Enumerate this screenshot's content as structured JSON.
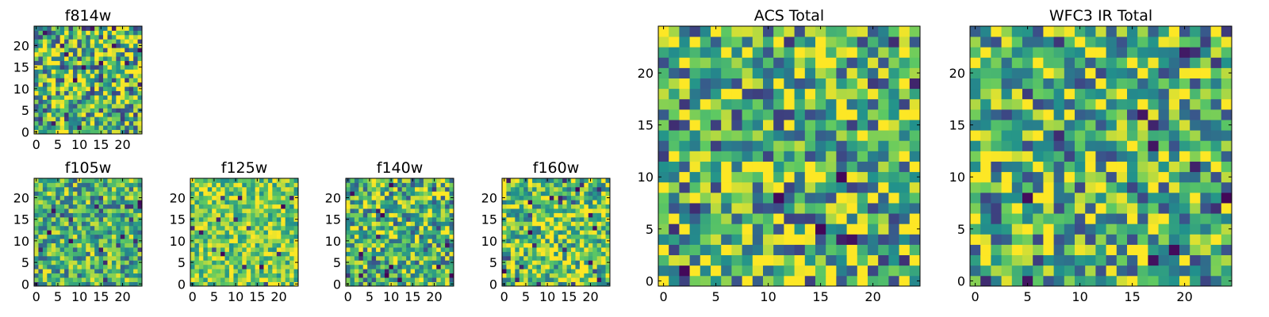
{
  "figure": {
    "colormap": "viridis",
    "colormap_stops": [
      "#440154",
      "#3b528b",
      "#21918c",
      "#5ec962",
      "#fde725"
    ],
    "background": "#ffffff"
  },
  "chart_data": [
    {
      "type": "heatmap",
      "id": "f814w",
      "title": "f814w",
      "grid_size": 25,
      "xticks": [
        0,
        5,
        10,
        15,
        20
      ],
      "yticks": [
        0,
        5,
        10,
        15,
        20
      ],
      "xlim": [
        -0.5,
        24.5
      ],
      "ylim": [
        -0.5,
        24.5
      ],
      "value_range": [
        0,
        1
      ],
      "mean_level": 0.68,
      "contrast": 1.0,
      "seed": 814
    },
    {
      "type": "heatmap",
      "id": "f105w",
      "title": "f105w",
      "grid_size": 25,
      "xticks": [
        0,
        5,
        10,
        15,
        20
      ],
      "yticks": [
        0,
        5,
        10,
        15,
        20
      ],
      "xlim": [
        -0.5,
        24.5
      ],
      "ylim": [
        -0.5,
        24.5
      ],
      "value_range": [
        0,
        1
      ],
      "mean_level": 0.64,
      "contrast": 0.7,
      "seed": 105
    },
    {
      "type": "heatmap",
      "id": "f125w",
      "title": "f125w",
      "grid_size": 25,
      "xticks": [
        0,
        5,
        10,
        15,
        20
      ],
      "yticks": [
        0,
        5,
        10,
        15,
        20
      ],
      "xlim": [
        -0.5,
        24.5
      ],
      "ylim": [
        -0.5,
        24.5
      ],
      "value_range": [
        0,
        1
      ],
      "mean_level": 0.78,
      "contrast": 0.6,
      "seed": 125
    },
    {
      "type": "heatmap",
      "id": "f140w",
      "title": "f140w",
      "grid_size": 25,
      "xticks": [
        0,
        5,
        10,
        15,
        20
      ],
      "yticks": [
        0,
        5,
        10,
        15,
        20
      ],
      "xlim": [
        -0.5,
        24.5
      ],
      "ylim": [
        -0.5,
        24.5
      ],
      "value_range": [
        0,
        1
      ],
      "mean_level": 0.66,
      "contrast": 0.8,
      "seed": 140
    },
    {
      "type": "heatmap",
      "id": "f160w",
      "title": "f160w",
      "grid_size": 25,
      "xticks": [
        0,
        5,
        10,
        15,
        20
      ],
      "yticks": [
        0,
        5,
        10,
        15,
        20
      ],
      "xlim": [
        -0.5,
        24.5
      ],
      "ylim": [
        -0.5,
        24.5
      ],
      "value_range": [
        0,
        1
      ],
      "mean_level": 0.74,
      "contrast": 0.75,
      "seed": 160
    },
    {
      "type": "heatmap",
      "id": "acs-total",
      "title": "ACS Total",
      "grid_size": 25,
      "xticks": [
        0,
        5,
        10,
        15,
        20
      ],
      "yticks": [
        0,
        5,
        10,
        15,
        20
      ],
      "xlim": [
        -0.5,
        24.5
      ],
      "ylim": [
        -0.5,
        24.5
      ],
      "value_range": [
        0,
        1
      ],
      "mean_level": 0.66,
      "contrast": 0.95,
      "seed": 7
    },
    {
      "type": "heatmap",
      "id": "wfc3-ir-total",
      "title": "WFC3 IR Total",
      "grid_size": 25,
      "xticks": [
        0,
        5,
        10,
        15,
        20
      ],
      "yticks": [
        0,
        5,
        10,
        15,
        20
      ],
      "xlim": [
        -0.5,
        24.5
      ],
      "ylim": [
        -0.5,
        24.5
      ],
      "value_range": [
        0,
        1
      ],
      "mean_level": 0.66,
      "contrast": 0.9,
      "seed": 33
    }
  ]
}
